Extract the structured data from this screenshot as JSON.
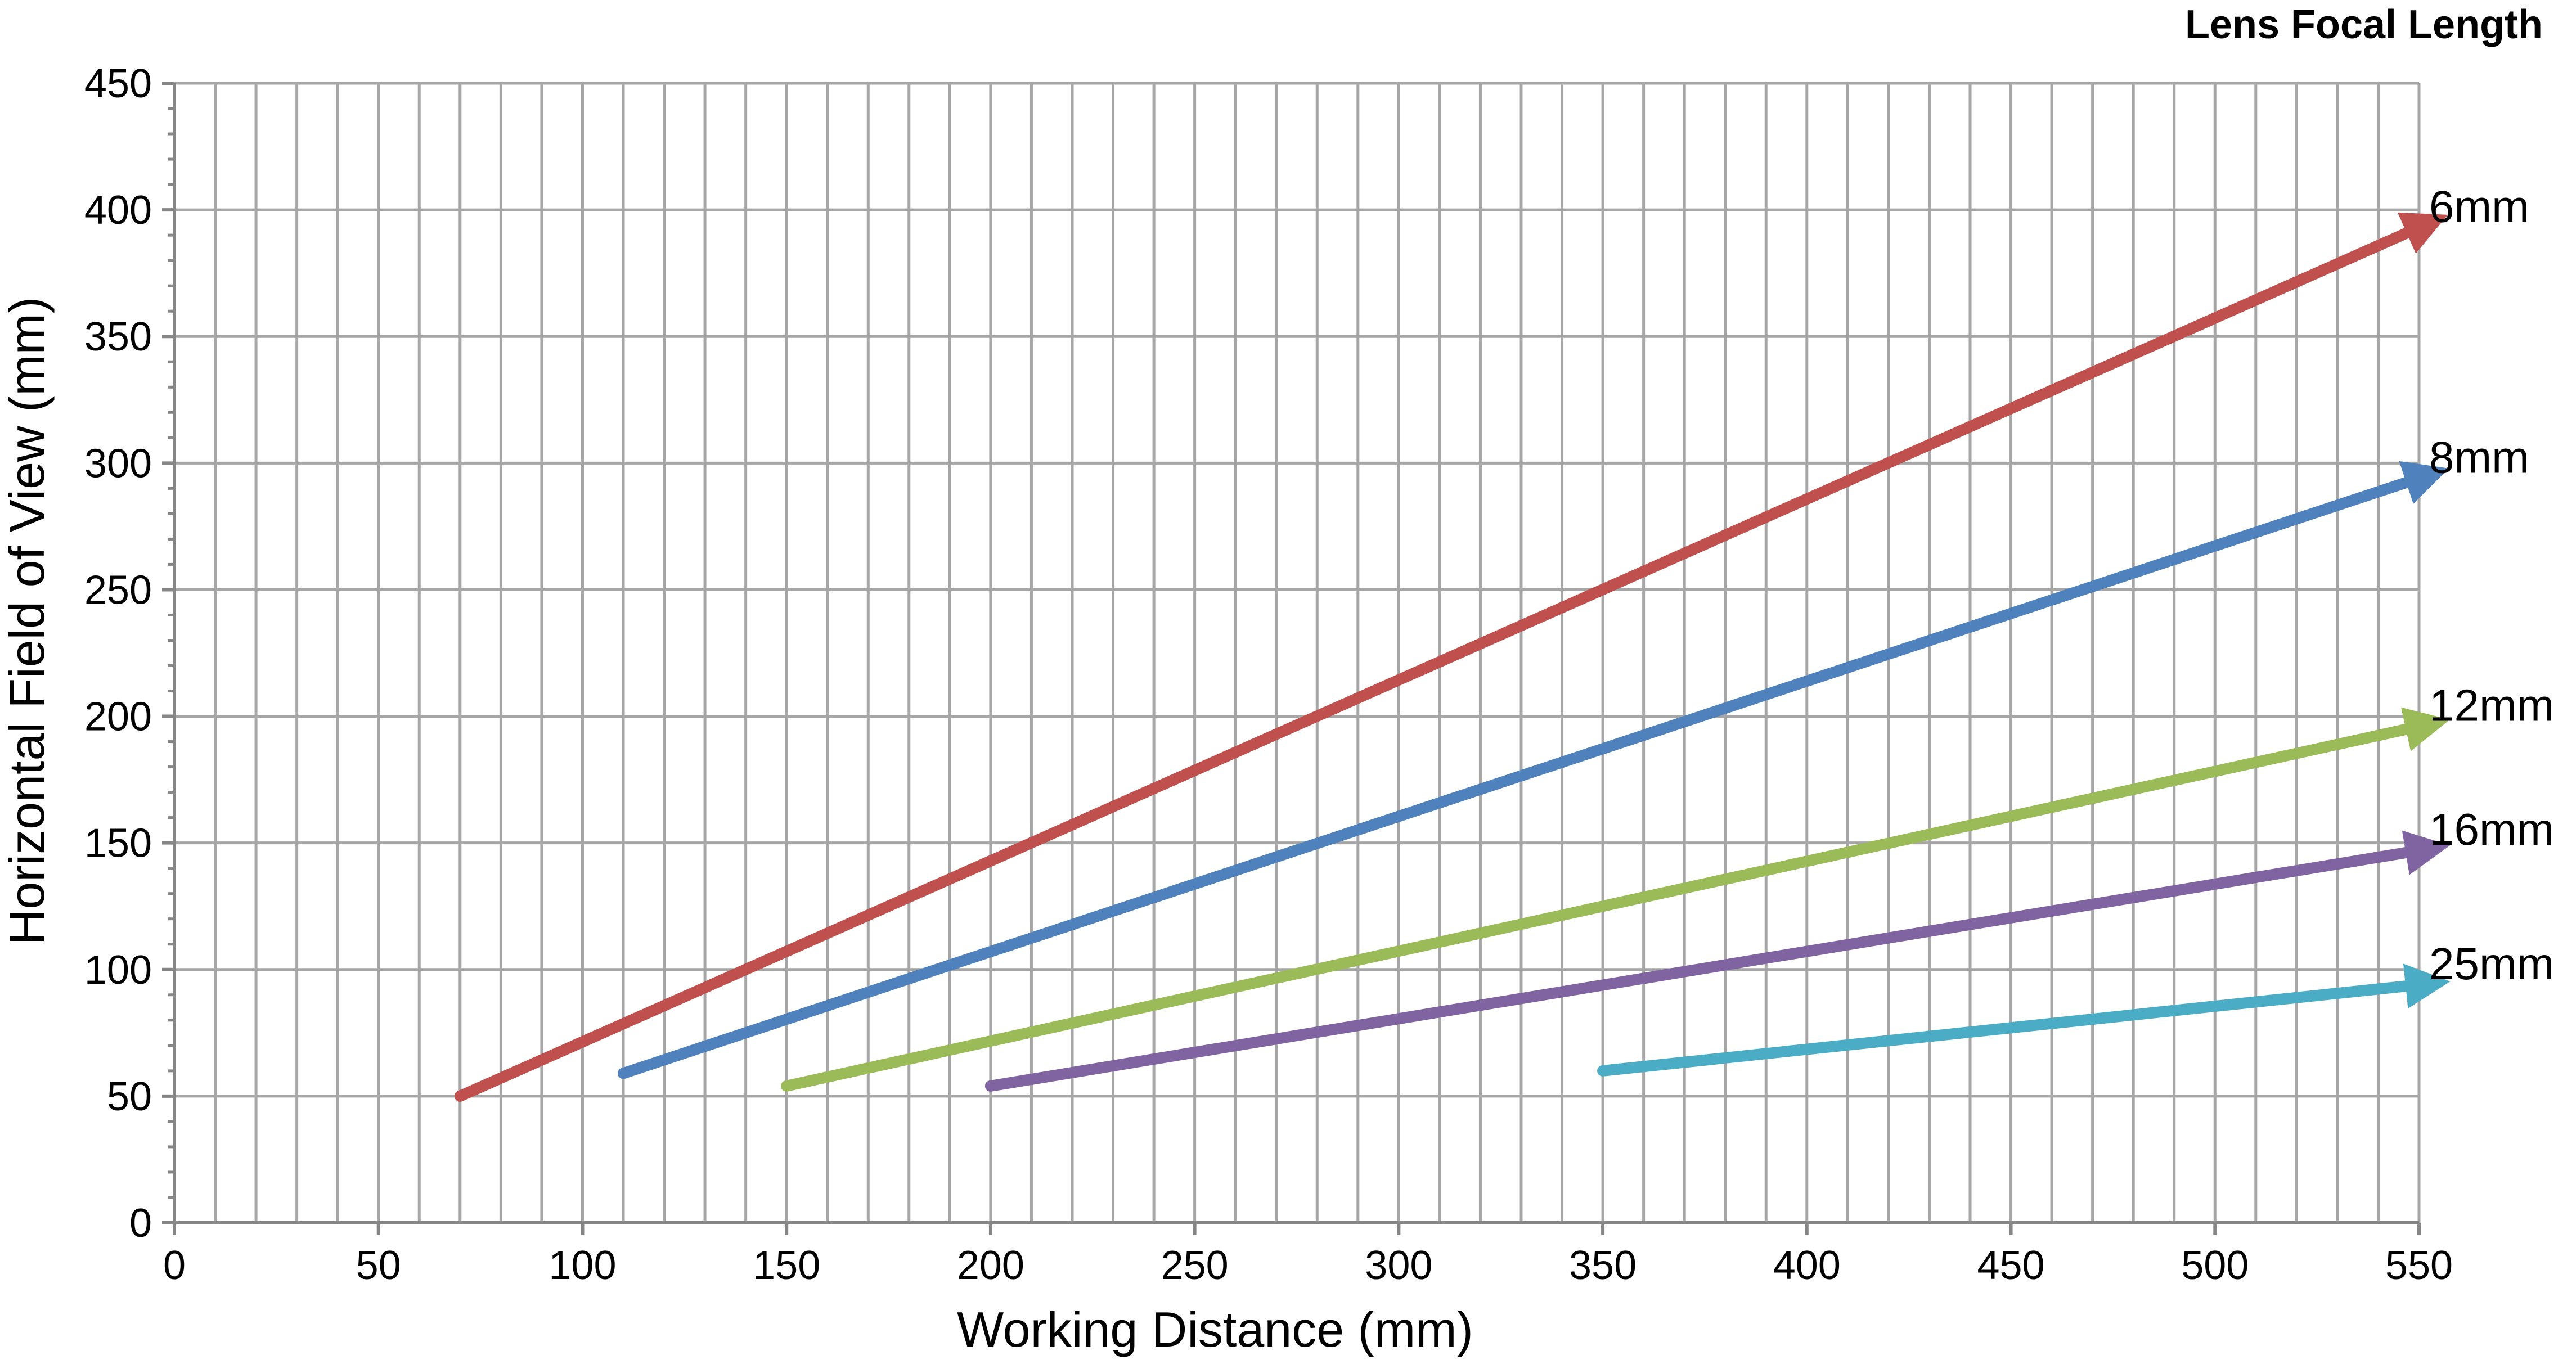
{
  "chart_data": {
    "type": "line",
    "legend_title": "Lens Focal Length",
    "xlabel": "Working Distance (mm)",
    "ylabel": "Horizontal Field of View (mm)",
    "xlim": [
      0,
      550
    ],
    "ylim": [
      0,
      450
    ],
    "x_ticks": [
      0,
      50,
      100,
      150,
      200,
      250,
      300,
      350,
      400,
      450,
      500,
      550
    ],
    "y_ticks": [
      0,
      50,
      100,
      150,
      200,
      250,
      300,
      350,
      400,
      450
    ],
    "grid": true,
    "minor_x_gridlines_step": 10,
    "legend_placement": "right, labels at line ends",
    "series": [
      {
        "name": "6mm",
        "color": "#c0504d",
        "x": [
          70,
          550
        ],
        "y": [
          50,
          393
        ]
      },
      {
        "name": "8mm",
        "color": "#4f81bd",
        "x": [
          110,
          550
        ],
        "y": [
          59,
          294
        ]
      },
      {
        "name": "12mm",
        "color": "#9bbb59",
        "x": [
          150,
          550
        ],
        "y": [
          54,
          196
        ]
      },
      {
        "name": "16mm",
        "color": "#8064a2",
        "x": [
          200,
          550
        ],
        "y": [
          54,
          147
        ]
      },
      {
        "name": "25mm",
        "color": "#4bacc6",
        "x": [
          350,
          550
        ],
        "y": [
          60,
          94
        ]
      }
    ]
  }
}
